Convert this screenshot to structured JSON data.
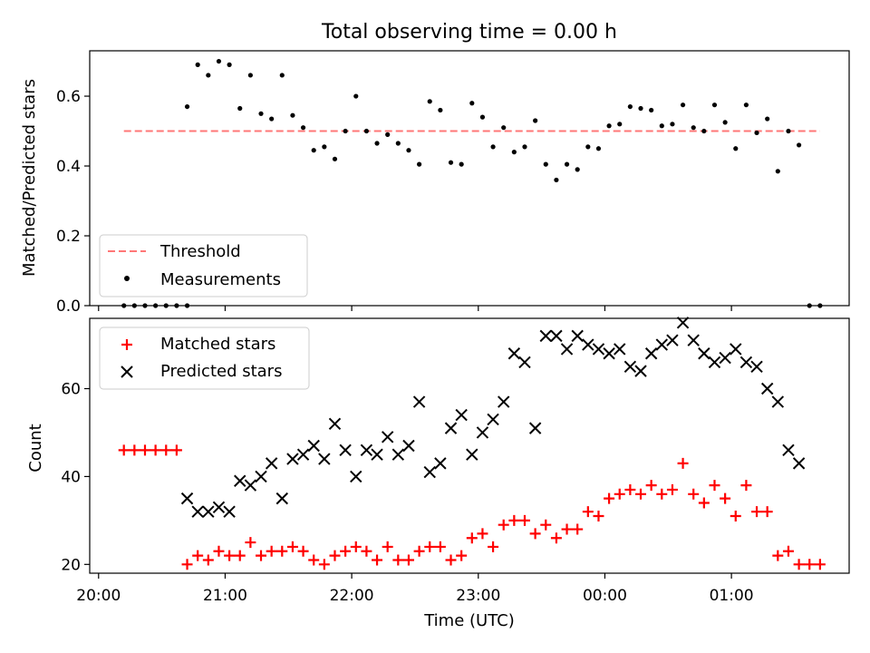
{
  "chart_data": [
    {
      "type": "scatter",
      "title": "Total observing time = 0.00 h",
      "xlabel": "",
      "ylabel": "Matched/Predicted stars",
      "x_range_hours": [
        19.93,
        25.93
      ],
      "ylim": [
        0,
        0.73
      ],
      "yticks": [
        0.0,
        0.2,
        0.4,
        0.6
      ],
      "ytick_labels": [
        "0.0",
        "0.2",
        "0.4",
        "0.6"
      ],
      "legend_position": "lower-left",
      "threshold": {
        "name": "Threshold",
        "value": 0.5,
        "x_start": 20.2,
        "x_end": 25.7,
        "color": "#ff7777"
      },
      "series": [
        {
          "name": "Measurements",
          "marker": "dot",
          "color": "#000000",
          "x": [
            "20:12",
            "20:17",
            "20:22",
            "20:27",
            "20:32",
            "20:37",
            "20:42",
            "20:42",
            "20:47",
            "20:52",
            "20:57",
            "21:02",
            "21:07",
            "21:12",
            "21:17",
            "21:22",
            "21:27",
            "21:32",
            "21:37",
            "21:42",
            "21:47",
            "21:52",
            "21:57",
            "22:02",
            "22:07",
            "22:12",
            "22:17",
            "22:22",
            "22:27",
            "22:32",
            "22:37",
            "22:42",
            "22:47",
            "22:52",
            "22:57",
            "23:02",
            "23:07",
            "23:12",
            "23:17",
            "23:22",
            "23:27",
            "23:32",
            "23:37",
            "23:42",
            "23:47",
            "23:52",
            "23:57",
            "00:02",
            "00:07",
            "00:12",
            "00:17",
            "00:22",
            "00:27",
            "00:32",
            "00:37",
            "00:42",
            "00:47",
            "00:52",
            "00:57",
            "01:02",
            "01:07",
            "01:12",
            "01:17",
            "01:22",
            "01:27",
            "01:32",
            "01:37",
            "01:42"
          ],
          "y": [
            0,
            0,
            0,
            0,
            0,
            0,
            0,
            0.57,
            0.69,
            0.66,
            0.7,
            0.69,
            0.565,
            0.66,
            0.55,
            0.535,
            0.66,
            0.545,
            0.51,
            0.445,
            0.455,
            0.42,
            0.5,
            0.6,
            0.5,
            0.465,
            0.49,
            0.465,
            0.445,
            0.405,
            0.585,
            0.56,
            0.41,
            0.405,
            0.58,
            0.54,
            0.455,
            0.51,
            0.44,
            0.455,
            0.53,
            0.405,
            0.36,
            0.405,
            0.39,
            0.455,
            0.45,
            0.515,
            0.52,
            0.57,
            0.565,
            0.56,
            0.515,
            0.52,
            0.575,
            0.51,
            0.5,
            0.575,
            0.525,
            0.45,
            0.575,
            0.495,
            0.535,
            0.385,
            0.5,
            0.46,
            0,
            0
          ]
        }
      ]
    },
    {
      "type": "scatter",
      "title": "",
      "xlabel": "Time (UTC)",
      "ylabel": "Count",
      "x_range_hours": [
        19.93,
        25.93
      ],
      "ylim": [
        18,
        76
      ],
      "yticks": [
        20,
        40,
        60
      ],
      "ytick_labels": [
        "20",
        "40",
        "60"
      ],
      "xticks_hours": [
        20,
        21,
        22,
        23,
        24,
        25
      ],
      "xtick_labels": [
        "20:00",
        "21:00",
        "22:00",
        "23:00",
        "00:00",
        "01:00"
      ],
      "legend_position": "top-left",
      "series": [
        {
          "name": "Matched stars",
          "marker": "plus",
          "color": "#ff0000",
          "x": [
            "20:12",
            "20:17",
            "20:22",
            "20:27",
            "20:32",
            "20:37",
            "20:42",
            "20:47",
            "20:52",
            "20:57",
            "21:02",
            "21:07",
            "21:12",
            "21:17",
            "21:22",
            "21:27",
            "21:32",
            "21:37",
            "21:42",
            "21:47",
            "21:52",
            "21:57",
            "22:02",
            "22:07",
            "22:12",
            "22:17",
            "22:22",
            "22:27",
            "22:32",
            "22:37",
            "22:42",
            "22:47",
            "22:52",
            "22:57",
            "23:02",
            "23:07",
            "23:12",
            "23:17",
            "23:22",
            "23:27",
            "23:32",
            "23:37",
            "23:42",
            "23:47",
            "23:52",
            "23:57",
            "00:02",
            "00:07",
            "00:12",
            "00:17",
            "00:22",
            "00:27",
            "00:32",
            "00:37",
            "00:42",
            "00:47",
            "00:52",
            "00:57",
            "01:02",
            "01:07",
            "01:12",
            "01:17",
            "01:22",
            "01:27",
            "01:32",
            "01:37",
            "01:42"
          ],
          "y": [
            46,
            46,
            46,
            46,
            46,
            46,
            20,
            22,
            21,
            23,
            22,
            22,
            25,
            22,
            23,
            23,
            24,
            23,
            21,
            20,
            22,
            23,
            24,
            23,
            21,
            24,
            21,
            21,
            23,
            24,
            24,
            21,
            22,
            26,
            27,
            24,
            29,
            30,
            30,
            27,
            29,
            26,
            28,
            28,
            32,
            31,
            35,
            36,
            37,
            36,
            38,
            36,
            37,
            43,
            36,
            34,
            38,
            35,
            31,
            38,
            32,
            32,
            22,
            23,
            20,
            20,
            20
          ]
        },
        {
          "name": "Predicted stars",
          "marker": "x",
          "color": "#000000",
          "x": [
            "20:42",
            "20:47",
            "20:52",
            "20:57",
            "21:02",
            "21:07",
            "21:12",
            "21:17",
            "21:22",
            "21:27",
            "21:32",
            "21:37",
            "21:42",
            "21:47",
            "21:52",
            "21:57",
            "22:02",
            "22:07",
            "22:12",
            "22:17",
            "22:22",
            "22:27",
            "22:32",
            "22:37",
            "22:42",
            "22:47",
            "22:52",
            "22:57",
            "23:02",
            "23:07",
            "23:12",
            "23:17",
            "23:22",
            "23:27",
            "23:32",
            "23:37",
            "23:42",
            "23:47",
            "23:52",
            "23:57",
            "00:02",
            "00:07",
            "00:12",
            "00:17",
            "00:22",
            "00:27",
            "00:32",
            "00:37",
            "00:42",
            "00:47",
            "00:52",
            "00:57",
            "01:02",
            "01:07",
            "01:12",
            "01:17",
            "01:22",
            "01:27",
            "01:32"
          ],
          "y": [
            35,
            32,
            32,
            33,
            32,
            39,
            38,
            40,
            43,
            35,
            44,
            45,
            47,
            44,
            52,
            46,
            40,
            46,
            45,
            49,
            45,
            47,
            57,
            41,
            43,
            51,
            54,
            45,
            50,
            53,
            57,
            68,
            66,
            51,
            72,
            72,
            69,
            72,
            70,
            69,
            68,
            69,
            65,
            64,
            68,
            70,
            71,
            75,
            71,
            68,
            66,
            67,
            69,
            66,
            65,
            60,
            57,
            46,
            43
          ]
        }
      ]
    }
  ]
}
